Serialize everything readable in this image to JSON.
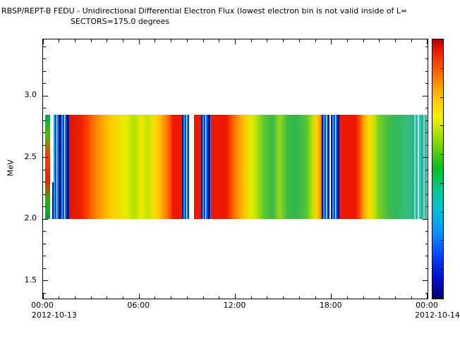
{
  "title": {
    "line1": "RBSP/REPT-B  FEDU - Unidirectional Differential Electron Flux (lowest electron bin is not valid inside of L=",
    "line2": "SECTORS=175.0 degrees"
  },
  "y_axis": {
    "label": "MeV",
    "ticks": [
      {
        "value": 1.5,
        "label": "1.5"
      },
      {
        "value": 2.0,
        "label": "2.0"
      },
      {
        "value": 2.5,
        "label": "2.5"
      },
      {
        "value": 3.0,
        "label": "3.0"
      }
    ]
  },
  "x_axis": {
    "ticks": [
      {
        "hour": 0,
        "label": "00:00"
      },
      {
        "hour": 6,
        "label": "06:00"
      },
      {
        "hour": 12,
        "label": "12:00"
      },
      {
        "hour": 18,
        "label": "18:00"
      },
      {
        "hour": 24,
        "label": "00:00"
      }
    ],
    "date_left": "2012-10-13",
    "date_right": "2012-10-14"
  },
  "chart_data": {
    "type": "heatmap",
    "title": "RBSP/REPT-B  FEDU - Unidirectional Differential Electron Flux (lowest electron bin is not valid inside of L=",
    "subtitle": "SECTORS=175.0 degrees",
    "xlabel": "",
    "ylabel": "MeV",
    "x_start": "2012-10-13 00:00",
    "x_end": "2012-10-14 00:00",
    "x_range_hours": [
      0,
      24
    ],
    "x_major_tick_hours": 6,
    "x_minor_tick_hours": 1,
    "y_range": [
      1.356,
      3.46
    ],
    "y_ticks": [
      1.5,
      2.0,
      2.5,
      3.0
    ],
    "y_minor_tick": 0.1,
    "band_mev": [
      2.0,
      2.85
    ],
    "grid": false,
    "legend": "colorbar-right",
    "segments": [
      {
        "t0": 0.0,
        "t1": 0.12,
        "bg": "#ffffff"
      },
      {
        "t0": 0.12,
        "t1": 0.42,
        "bg": "linear-gradient(180deg,#00a858 0%,#40c000 18%,#f04000 40%,#e82000 62%,#28b400 82%,#00a050 100%)"
      },
      {
        "t0": 0.42,
        "t1": 0.56,
        "bg": "#ffffff"
      },
      {
        "t0": 0.56,
        "t1": 1.62,
        "bg": "repeating-linear-gradient(90deg,#0018a0 0px,#0018a0 2px,#00a8ff 2px,#00a8ff 4px,#0040e0 4px,#0040e0 6px,#e8f8ff 6px,#e8f8ff 7px,#0078ff 7px,#0078ff 9px,#001488 9px,#001488 11px)"
      },
      {
        "t0": 1.62,
        "t1": 2.85,
        "bg": "linear-gradient(90deg,#d81800 0%,#ee2000 60%,#ff4800 100%)"
      },
      {
        "t0": 2.85,
        "t1": 5.2,
        "bg": "linear-gradient(90deg,#ff5800 0%,#ff9800 30%,#ffc800 55%,#f0e000 80%,#e8ec00 100%)"
      },
      {
        "t0": 5.2,
        "t1": 7.2,
        "bg": "linear-gradient(90deg,#e8ec00 0%,#b0e000 25%,#f0ec00 45%,#c0e400 65%,#f8e000 85%,#ffc800 100%)"
      },
      {
        "t0": 7.2,
        "t1": 8.05,
        "bg": "linear-gradient(90deg,#ffc800 0%,#ff8000 55%,#f83000 100%)"
      },
      {
        "t0": 8.05,
        "t1": 8.68,
        "bg": "#ee1800"
      },
      {
        "t0": 8.68,
        "t1": 9.12,
        "bg": "repeating-linear-gradient(90deg,#0018a0 0px,#0018a0 2px,#00a8ff 2px,#00a8ff 4px,#0040e0 4px,#0040e0 6px,#e8f8ff 6px,#e8f8ff 7px,#0078ff 7px,#0078ff 9px,#001488 9px,#001488 11px)"
      },
      {
        "t0": 9.12,
        "t1": 9.42,
        "bg": "#ffffff"
      },
      {
        "t0": 9.42,
        "t1": 9.86,
        "bg": "#ee1800"
      },
      {
        "t0": 9.86,
        "t1": 10.48,
        "bg": "repeating-linear-gradient(90deg,#0018a0 0px,#0018a0 2px,#00a8ff 2px,#00a8ff 4px,#0040e0 4px,#0040e0 6px,#e8f8ff 6px,#e8f8ff 7px,#0078ff 7px,#0078ff 9px,#001488 9px,#001488 11px)"
      },
      {
        "t0": 10.48,
        "t1": 11.45,
        "bg": "#ee1800"
      },
      {
        "t0": 11.45,
        "t1": 13.2,
        "bg": "linear-gradient(90deg,#ee1800 0%,#ff7800 30%,#ffc000 60%,#e8e800 85%,#c8e800 100%)"
      },
      {
        "t0": 13.2,
        "t1": 16.45,
        "bg": "linear-gradient(90deg,#c8e800 0%,#58c830 18%,#38b848 35%,#98d818 48%,#40bc40 62%,#30b454 80%,#58c830 100%)"
      },
      {
        "t0": 16.45,
        "t1": 17.38,
        "bg": "linear-gradient(90deg,#58c830 0%,#c8e000 40%,#ffd000 70%,#ff8800 92%,#ff5800 100%)"
      },
      {
        "t0": 17.38,
        "t1": 17.88,
        "bg": "repeating-linear-gradient(90deg,#0018a0 0px,#0018a0 2px,#00a8ff 2px,#00a8ff 4px,#0040e0 4px,#0040e0 6px,#e8f8ff 6px,#e8f8ff 7px,#0078ff 7px,#0078ff 9px,#001488 9px,#001488 11px)"
      },
      {
        "t0": 17.88,
        "t1": 17.98,
        "bg": "#ffffff"
      },
      {
        "t0": 17.98,
        "t1": 18.48,
        "bg": "repeating-linear-gradient(90deg,#0018a0 0px,#0018a0 2px,#00a8ff 2px,#00a8ff 4px,#0040e0 4px,#0040e0 6px,#e8f8ff 6px,#e8f8ff 7px,#0078ff 7px,#0078ff 9px,#001488 9px,#001488 11px)"
      },
      {
        "t0": 18.48,
        "t1": 19.92,
        "bg": "linear-gradient(90deg,#ee1800 0%,#ee1800 70%,#ff5800 90%,#ff9000 100%)"
      },
      {
        "t0": 19.92,
        "t1": 20.9,
        "bg": "linear-gradient(90deg,#ff9000 0%,#ffd800 40%,#c8e800 75%,#80d020 100%)"
      },
      {
        "t0": 20.9,
        "t1": 23.05,
        "bg": "linear-gradient(90deg,#80d020 0%,#40bc48 30%,#30b860 55%,#38bc78 80%,#30b888 100%)"
      },
      {
        "t0": 23.05,
        "t1": 24.0,
        "bg": "repeating-linear-gradient(90deg,#28b088 0px,#28b088 3px,#78dce8 3px,#78dce8 5px,#38b890 5px,#38b890 8px,#a8e8f8 8px,#a8e8f8 10px,#40c0a8 10px,#40c0a8 13px)"
      }
    ],
    "notches": [
      {
        "t0": 0.42,
        "t1": 0.64,
        "mev_low": 2.3,
        "mev_high": 2.85
      }
    ],
    "colorbar": {
      "stops": [
        {
          "pos": 0.0,
          "color": "#b80000"
        },
        {
          "pos": 0.04,
          "color": "#e81800"
        },
        {
          "pos": 0.12,
          "color": "#ff6000"
        },
        {
          "pos": 0.22,
          "color": "#ffc000"
        },
        {
          "pos": 0.3,
          "color": "#f8f000"
        },
        {
          "pos": 0.4,
          "color": "#80d800"
        },
        {
          "pos": 0.5,
          "color": "#00c020"
        },
        {
          "pos": 0.58,
          "color": "#00c890"
        },
        {
          "pos": 0.66,
          "color": "#00c0d8"
        },
        {
          "pos": 0.75,
          "color": "#0090ff"
        },
        {
          "pos": 0.84,
          "color": "#0040ff"
        },
        {
          "pos": 0.92,
          "color": "#0010d0"
        },
        {
          "pos": 1.0,
          "color": "#000070"
        }
      ],
      "tick_count": 10
    }
  }
}
